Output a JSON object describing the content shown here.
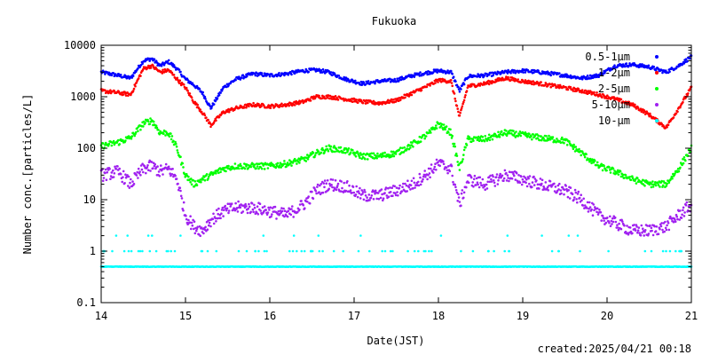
{
  "chart_data": {
    "type": "scatter",
    "title": "Fukuoka",
    "xlabel": "Date(JST)",
    "ylabel": "Number conc.[particles/L]",
    "footer": "created:2025/04/21 00:18",
    "xlim": [
      14,
      21
    ],
    "ylim": [
      0.1,
      10000
    ],
    "yscale": "log",
    "grid": false,
    "legend_position": "top-right",
    "x_ticks": [
      "14",
      "15",
      "16",
      "17",
      "18",
      "19",
      "20",
      "21"
    ],
    "y_ticks": [
      "0.1",
      "1",
      "10",
      "100",
      "1000",
      "10000"
    ],
    "series": [
      {
        "name": "0.5-1μm",
        "color": "#0000ff",
        "x": [
          14.0,
          14.2,
          14.35,
          14.5,
          14.6,
          14.7,
          14.8,
          14.9,
          15.0,
          15.1,
          15.2,
          15.3,
          15.45,
          15.6,
          15.8,
          16.0,
          16.2,
          16.4,
          16.55,
          16.7,
          16.9,
          17.1,
          17.3,
          17.5,
          17.7,
          17.9,
          18.0,
          18.15,
          18.25,
          18.35,
          18.55,
          18.8,
          19.0,
          19.2,
          19.5,
          19.7,
          19.9,
          20.1,
          20.3,
          20.5,
          20.7,
          20.85,
          21.0
        ],
        "y": [
          3000,
          2600,
          2300,
          5000,
          5500,
          4000,
          4800,
          3500,
          2200,
          1700,
          1200,
          600,
          1500,
          2200,
          2800,
          2600,
          2800,
          3200,
          3300,
          3000,
          2200,
          1800,
          2000,
          2100,
          2600,
          3000,
          3200,
          3000,
          1300,
          2500,
          2600,
          3000,
          3200,
          3000,
          2600,
          2300,
          2600,
          4000,
          4200,
          3800,
          3000,
          4000,
          6000
        ]
      },
      {
        "name": "1-2μm",
        "color": "#ff0000",
        "x": [
          14.0,
          14.2,
          14.35,
          14.5,
          14.6,
          14.7,
          14.8,
          14.9,
          15.0,
          15.1,
          15.2,
          15.3,
          15.45,
          15.6,
          15.8,
          16.0,
          16.2,
          16.4,
          16.55,
          16.7,
          16.9,
          17.1,
          17.3,
          17.5,
          17.7,
          17.9,
          18.0,
          18.15,
          18.25,
          18.35,
          18.55,
          18.8,
          19.0,
          19.2,
          19.5,
          19.7,
          19.9,
          20.1,
          20.3,
          20.5,
          20.7,
          20.85,
          21.0
        ],
        "y": [
          1300,
          1200,
          1100,
          3500,
          4000,
          3000,
          3300,
          2200,
          1500,
          800,
          500,
          280,
          500,
          600,
          700,
          650,
          700,
          800,
          1000,
          1000,
          900,
          800,
          750,
          850,
          1200,
          1700,
          2100,
          2000,
          400,
          1600,
          1800,
          2300,
          2000,
          1800,
          1500,
          1300,
          1100,
          900,
          700,
          450,
          250,
          600,
          1500
        ]
      },
      {
        "name": "2-5μm",
        "color": "#00ff00",
        "x": [
          14.0,
          14.2,
          14.35,
          14.5,
          14.6,
          14.7,
          14.8,
          14.9,
          15.0,
          15.1,
          15.2,
          15.3,
          15.45,
          15.6,
          15.8,
          16.0,
          16.2,
          16.4,
          16.55,
          16.7,
          16.9,
          17.1,
          17.3,
          17.5,
          17.7,
          17.9,
          18.0,
          18.15,
          18.25,
          18.35,
          18.55,
          18.8,
          19.0,
          19.2,
          19.5,
          19.7,
          19.9,
          20.1,
          20.3,
          20.5,
          20.7,
          20.85,
          21.0
        ],
        "y": [
          110,
          130,
          160,
          300,
          350,
          200,
          200,
          100,
          30,
          20,
          25,
          30,
          40,
          45,
          45,
          45,
          50,
          60,
          80,
          100,
          90,
          70,
          70,
          80,
          120,
          200,
          300,
          200,
          40,
          150,
          150,
          200,
          180,
          160,
          140,
          80,
          45,
          35,
          25,
          20,
          20,
          40,
          100
        ]
      },
      {
        "name": "5-10μm",
        "color": "#a020f0",
        "x": [
          14.0,
          14.2,
          14.35,
          14.5,
          14.6,
          14.7,
          14.8,
          14.9,
          15.0,
          15.1,
          15.2,
          15.3,
          15.45,
          15.6,
          15.8,
          16.0,
          16.2,
          16.4,
          16.55,
          16.7,
          16.9,
          17.1,
          17.3,
          17.5,
          17.7,
          17.9,
          18.0,
          18.15,
          18.25,
          18.35,
          18.55,
          18.8,
          19.0,
          19.2,
          19.5,
          19.7,
          19.9,
          20.1,
          20.3,
          20.5,
          20.7,
          20.85,
          21.0
        ],
        "y": [
          30,
          35,
          20,
          40,
          45,
          35,
          40,
          25,
          5,
          3,
          2.5,
          4,
          6,
          7,
          7,
          6,
          5,
          8,
          15,
          20,
          18,
          12,
          12,
          15,
          20,
          35,
          50,
          40,
          8,
          25,
          20,
          30,
          25,
          20,
          15,
          10,
          5,
          3.5,
          2.5,
          2.5,
          3,
          5,
          8
        ]
      },
      {
        "name": "10-μm",
        "color": "#00ffff",
        "x": [
          14.0,
          14.5,
          15.0,
          15.5,
          16.0,
          16.5,
          17.0,
          17.5,
          18.0,
          18.5,
          19.0,
          19.5,
          20.0,
          20.5,
          21.0
        ],
        "y": [
          0.5,
          0.5,
          0.5,
          0.5,
          0.5,
          0.5,
          0.5,
          0.5,
          0.5,
          0.5,
          0.45,
          0.45,
          0.45,
          0.45,
          0.45
        ],
        "sporadic_y": 1.0
      }
    ]
  }
}
